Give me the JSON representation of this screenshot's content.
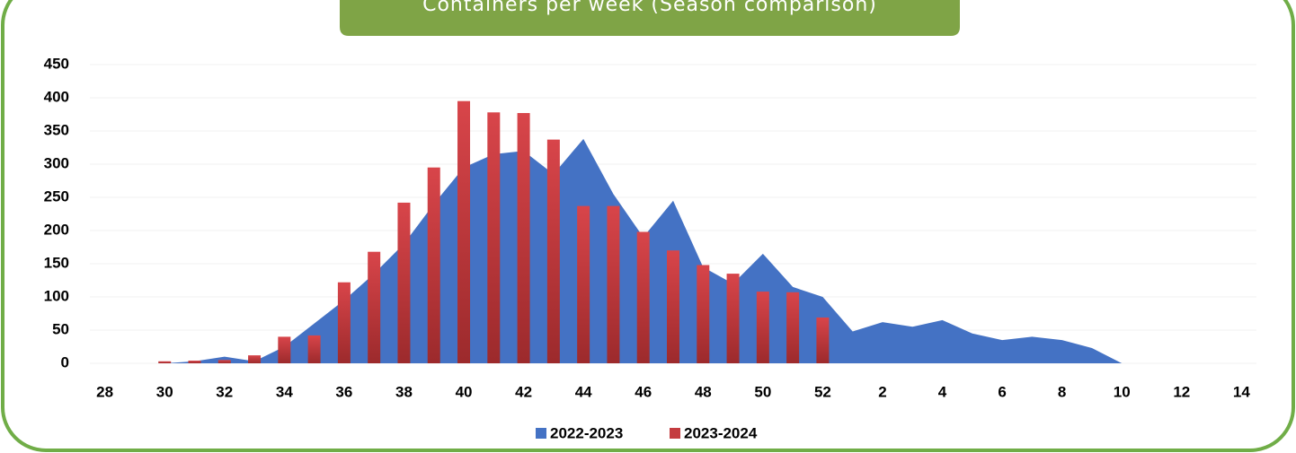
{
  "chart_data": {
    "type": "bar",
    "title": "Containers per week (Season comparison)",
    "categories": [
      28,
      null,
      30,
      null,
      32,
      null,
      34,
      null,
      36,
      null,
      38,
      null,
      40,
      null,
      42,
      null,
      44,
      null,
      46,
      null,
      48,
      null,
      50,
      null,
      52,
      null,
      2,
      null,
      4,
      null,
      6,
      null,
      8,
      null,
      10,
      null,
      12,
      null,
      14
    ],
    "series": [
      {
        "name": "2022-2023",
        "type": "area",
        "color": "#4472c4",
        "values": [
          null,
          null,
          0,
          3,
          10,
          3,
          25,
          60,
          95,
          135,
          180,
          240,
          295,
          315,
          320,
          285,
          338,
          255,
          190,
          245,
          145,
          120,
          165,
          115,
          100,
          48,
          62,
          55,
          65,
          45,
          35,
          40,
          35,
          23,
          0,
          null,
          null,
          null,
          null
        ]
      },
      {
        "name": "2023-2024",
        "type": "bar",
        "color": "#c43c3f",
        "values": [
          null,
          null,
          3,
          4,
          5,
          12,
          40,
          42,
          122,
          168,
          242,
          295,
          395,
          378,
          377,
          337,
          237,
          237,
          198,
          170,
          148,
          135,
          108,
          107,
          69,
          null,
          null,
          null,
          null,
          null,
          null,
          null,
          null,
          null,
          null,
          null,
          null,
          null,
          null
        ]
      }
    ],
    "ylim": [
      0,
      450
    ],
    "yticks": [
      0,
      50,
      100,
      150,
      200,
      250,
      300,
      350,
      400,
      450
    ],
    "grid": true,
    "legend": "bottom"
  }
}
